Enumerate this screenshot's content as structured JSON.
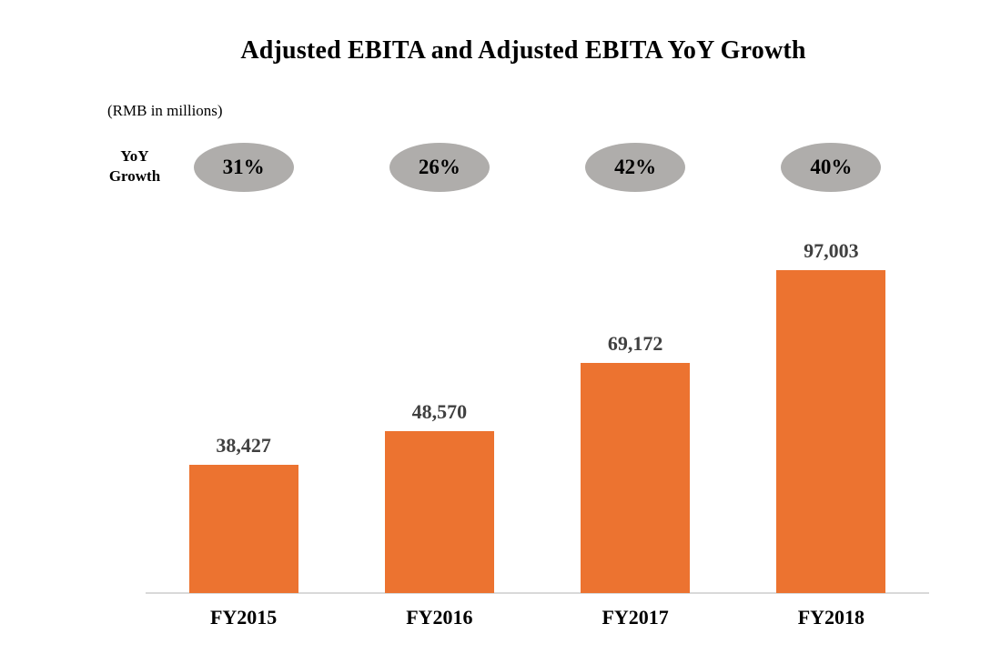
{
  "chart_data": {
    "type": "bar",
    "title": "Adjusted EBITA and Adjusted EBITA YoY Growth",
    "subtitle": "(RMB in millions)",
    "yoy_row_label": "YoY Growth",
    "categories": [
      "FY2015",
      "FY2016",
      "FY2017",
      "FY2018"
    ],
    "values": [
      38427,
      48570,
      69172,
      97003
    ],
    "value_labels": [
      "38,427",
      "48,570",
      "69,172",
      "97,003"
    ],
    "yoy_growth": [
      "31%",
      "26%",
      "42%",
      "40%"
    ],
    "legend_position": "none",
    "grid": "off",
    "value_axis_ticks_visible": false,
    "colors": {
      "bar": "#EC7330",
      "bubble": "#AFADAB",
      "value_label": "#404040",
      "axis_line": "#D9D9D9",
      "title_text": "#000000"
    }
  }
}
